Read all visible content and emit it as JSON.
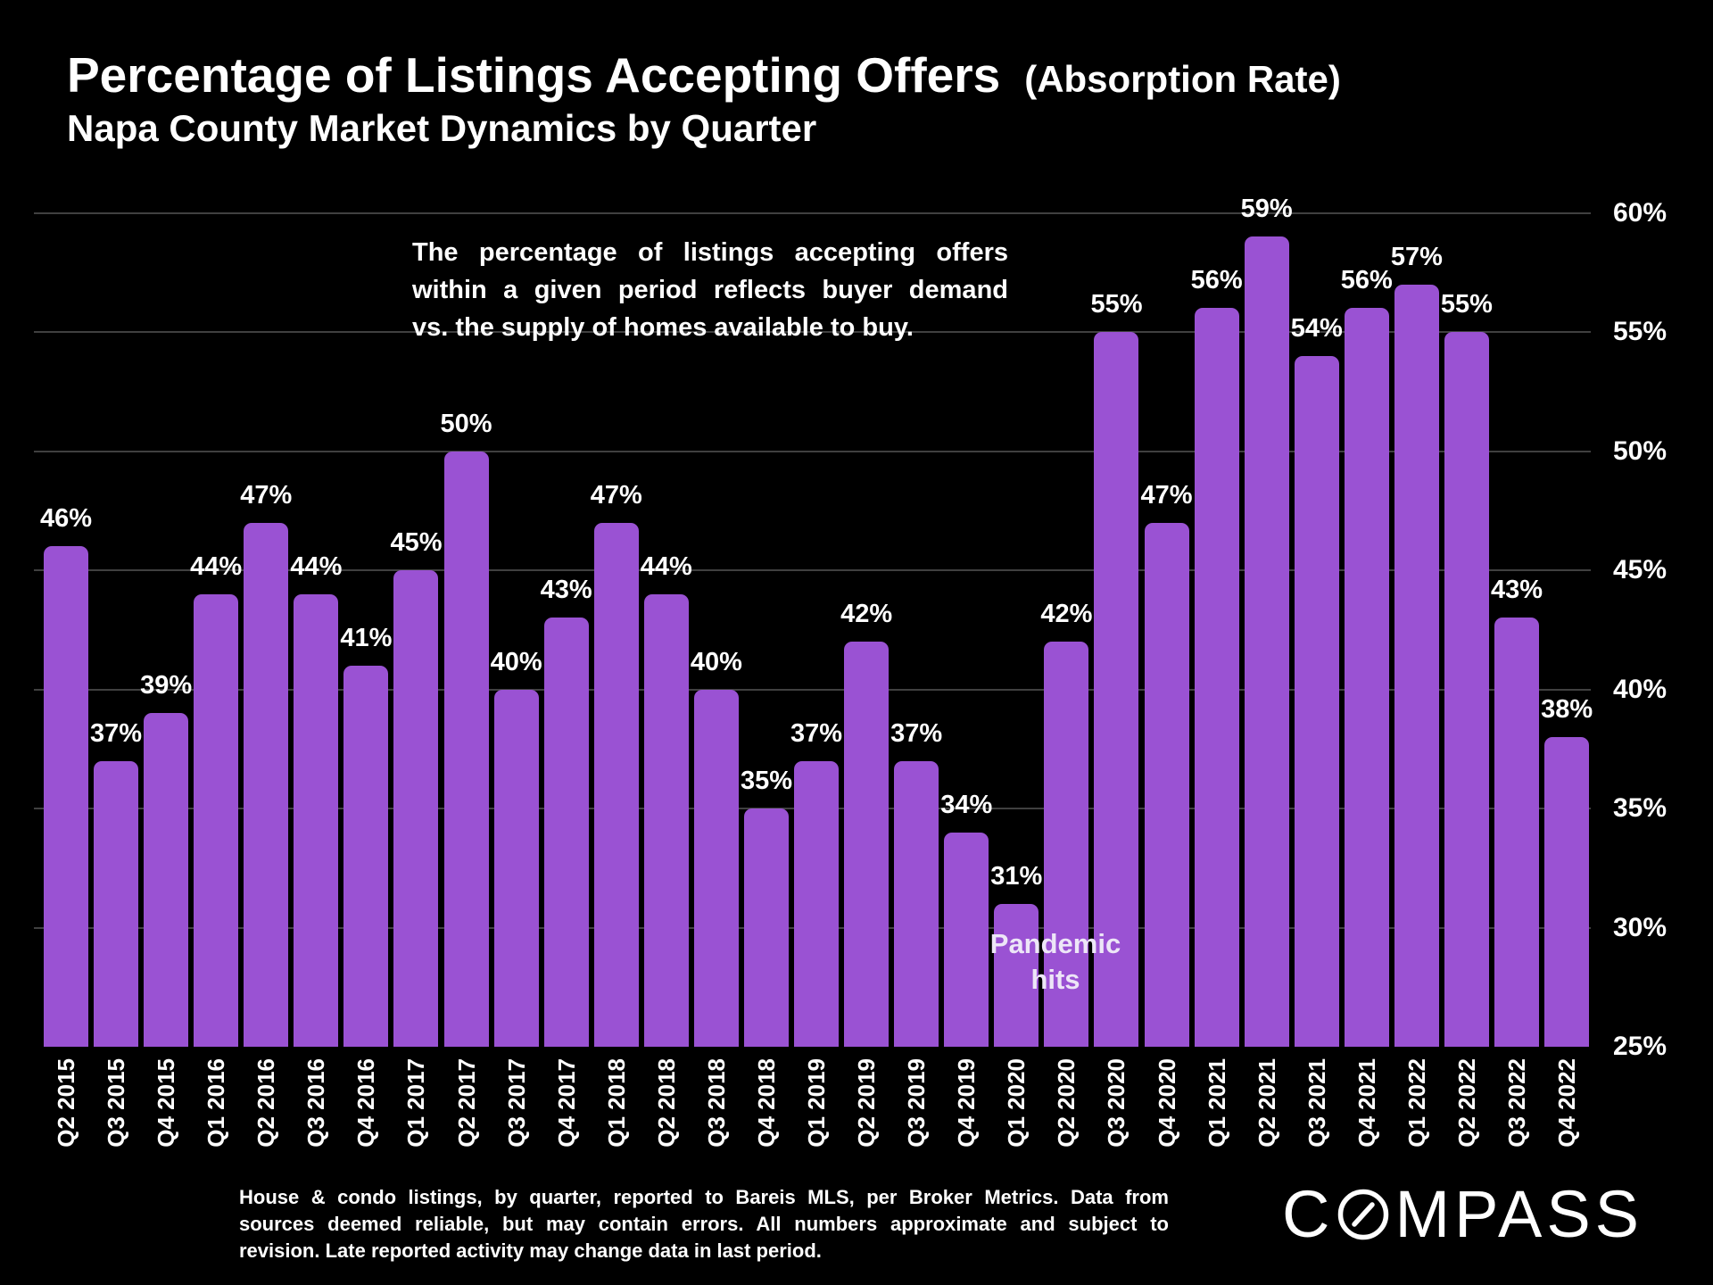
{
  "title": {
    "main": "Percentage of Listings Accepting Offers",
    "paren": "(Absorption Rate)",
    "subtitle": "Napa County Market Dynamics by Quarter"
  },
  "annotation": {
    "lines": [
      "The percentage of listings accepting offers",
      "within a given period reflects buyer demand",
      "vs. the supply of homes available to buy."
    ]
  },
  "pandemic_note": {
    "line1": "Pandemic",
    "line2": "hits",
    "anchor_category": "Q1 2020"
  },
  "footer": {
    "lines": [
      "House & condo listings, by quarter, reported to Bareis MLS, per Broker Metrics. Data from",
      "sources deemed reliable, but may contain errors. All numbers approximate and subject to",
      "revision. Late reported activity may change data in last period."
    ]
  },
  "logo": {
    "pre": "C",
    "post": "MPASS",
    "icon": "compass-o-icon"
  },
  "colors": {
    "background": "#000000",
    "bar": "#9a52d3",
    "gridline": "#404040",
    "text": "#ffffff",
    "pandemic_text": "#ede6f7"
  },
  "chart_data": {
    "type": "bar",
    "title": "Percentage of Listings Accepting Offers (Absorption Rate)",
    "subtitle": "Napa County Market Dynamics by Quarter",
    "categories": [
      "Q2 2015",
      "Q3 2015",
      "Q4 2015",
      "Q1 2016",
      "Q2 2016",
      "Q3 2016",
      "Q4 2016",
      "Q1 2017",
      "Q2 2017",
      "Q3 2017",
      "Q4 2017",
      "Q1 2018",
      "Q2 2018",
      "Q3 2018",
      "Q4 2018",
      "Q1 2019",
      "Q2 2019",
      "Q3 2019",
      "Q4 2019",
      "Q1 2020",
      "Q2 2020",
      "Q3 2020",
      "Q4 2020",
      "Q1 2021",
      "Q2 2021",
      "Q3 2021",
      "Q4 2021",
      "Q1 2022",
      "Q2 2022",
      "Q3 2022",
      "Q4 2022"
    ],
    "values": [
      46,
      37,
      39,
      44,
      47,
      44,
      41,
      45,
      50,
      40,
      43,
      47,
      44,
      40,
      35,
      37,
      42,
      37,
      34,
      31,
      42,
      55,
      47,
      56,
      59,
      54,
      56,
      57,
      55,
      43,
      38
    ],
    "value_label_format": "{v}%",
    "xlabel": "",
    "ylabel": "",
    "ylim": [
      25,
      60
    ],
    "yticks": [
      60,
      55,
      50,
      45,
      40,
      35,
      30,
      25
    ],
    "ytick_format": "{v}%",
    "grid": true,
    "axis_side": "right",
    "legend": false
  }
}
